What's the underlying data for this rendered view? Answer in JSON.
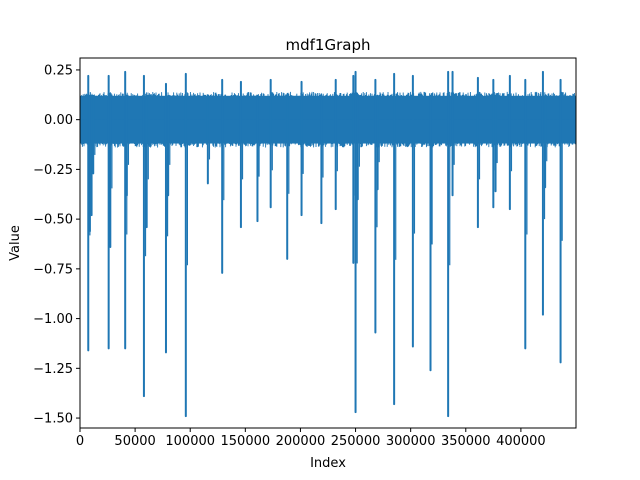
{
  "chart_data": {
    "type": "line",
    "title": "mdf1Graph",
    "xlabel": "Index",
    "ylabel": "Value",
    "xlim": [
      0,
      450000
    ],
    "ylim": [
      -1.55,
      0.31
    ],
    "x_ticks": [
      0,
      50000,
      100000,
      150000,
      200000,
      250000,
      300000,
      350000,
      400000
    ],
    "x_tick_labels": [
      "0",
      "50000",
      "100000",
      "150000",
      "200000",
      "250000",
      "300000",
      "350000",
      "400000"
    ],
    "y_ticks": [
      0.25,
      0.0,
      -0.25,
      -0.5,
      -0.75,
      -1.0,
      -1.25,
      -1.5
    ],
    "y_tick_labels": [
      "0.25",
      "0.00",
      "−0.25",
      "−0.50",
      "−0.75",
      "−1.00",
      "−1.25",
      "−1.50"
    ],
    "grid": false,
    "line_color": "#1f77b4",
    "baseline_noise_band": [
      -0.12,
      0.12
    ],
    "series": [
      {
        "x_range": [
          0,
          450000
        ],
        "spikes": [
          {
            "x": 7500,
            "y": -1.16,
            "peak": 0.22
          },
          {
            "x": 9000,
            "y": -0.56
          },
          {
            "x": 10500,
            "y": -0.48
          },
          {
            "x": 12000,
            "y": -0.27
          },
          {
            "x": 26000,
            "y": -1.15,
            "peak": 0.22
          },
          {
            "x": 27500,
            "y": -0.64
          },
          {
            "x": 41000,
            "y": -1.15,
            "peak": 0.24
          },
          {
            "x": 42500,
            "y": -0.38
          },
          {
            "x": 58000,
            "y": -1.39,
            "peak": 0.22
          },
          {
            "x": 60500,
            "y": -0.54
          },
          {
            "x": 78000,
            "y": -1.17,
            "peak": 0.18
          },
          {
            "x": 80000,
            "y": -0.38
          },
          {
            "x": 96000,
            "y": -1.49,
            "peak": 0.23
          },
          {
            "x": 116000,
            "y": -0.32
          },
          {
            "x": 129000,
            "y": -0.77,
            "peak": 0.2
          },
          {
            "x": 146000,
            "y": -0.54,
            "peak": 0.19
          },
          {
            "x": 161000,
            "y": -0.51
          },
          {
            "x": 173000,
            "y": -0.44,
            "peak": 0.2
          },
          {
            "x": 188000,
            "y": -0.7
          },
          {
            "x": 201000,
            "y": -0.48,
            "peak": 0.19
          },
          {
            "x": 219000,
            "y": -0.52
          },
          {
            "x": 232000,
            "y": -0.45,
            "peak": 0.2
          },
          {
            "x": 248000,
            "y": -0.72,
            "peak": 0.22
          },
          {
            "x": 250000,
            "y": -1.47,
            "peak": 0.24
          },
          {
            "x": 252000,
            "y": -0.4
          },
          {
            "x": 268000,
            "y": -1.07,
            "peak": 0.2
          },
          {
            "x": 270000,
            "y": -0.35
          },
          {
            "x": 285000,
            "y": -1.43,
            "peak": 0.23
          },
          {
            "x": 302000,
            "y": -1.14,
            "peak": 0.22
          },
          {
            "x": 318000,
            "y": -1.26
          },
          {
            "x": 334000,
            "y": -1.49,
            "peak": 0.24
          },
          {
            "x": 338000,
            "y": -0.38,
            "peak": 0.24
          },
          {
            "x": 361000,
            "y": -0.54,
            "peak": 0.21
          },
          {
            "x": 375000,
            "y": -0.44,
            "peak": 0.2
          },
          {
            "x": 377000,
            "y": -0.36
          },
          {
            "x": 390000,
            "y": -0.45,
            "peak": 0.22
          },
          {
            "x": 404000,
            "y": -1.15,
            "peak": 0.2
          },
          {
            "x": 420000,
            "y": -0.98,
            "peak": 0.24
          },
          {
            "x": 422000,
            "y": -0.34
          },
          {
            "x": 436000,
            "y": -1.22,
            "peak": 0.2
          }
        ]
      }
    ]
  }
}
